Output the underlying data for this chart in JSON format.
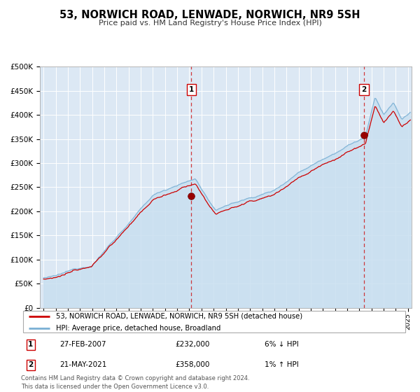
{
  "title": "53, NORWICH ROAD, LENWADE, NORWICH, NR9 5SH",
  "subtitle": "Price paid vs. HM Land Registry's House Price Index (HPI)",
  "legend_line1": "53, NORWICH ROAD, LENWADE, NORWICH, NR9 5SH (detached house)",
  "legend_line2": "HPI: Average price, detached house, Broadland",
  "annotation1_date": "27-FEB-2007",
  "annotation1_price": "£232,000",
  "annotation1_hpi": "6% ↓ HPI",
  "annotation2_date": "21-MAY-2021",
  "annotation2_price": "£358,000",
  "annotation2_hpi": "1% ↑ HPI",
  "footer1": "Contains HM Land Registry data © Crown copyright and database right 2024.",
  "footer2": "This data is licensed under the Open Government Licence v3.0.",
  "price_color": "#cc0000",
  "hpi_color": "#7ab0d4",
  "hpi_fill_color": "#c8dff0",
  "background_color": "#dce8f4",
  "vline_color": "#cc0000",
  "point1_x": 2007.16,
  "point1_y": 232000,
  "point2_x": 2021.38,
  "point2_y": 358000,
  "ylim": [
    0,
    500000
  ],
  "yticks": [
    0,
    50000,
    100000,
    150000,
    200000,
    250000,
    300000,
    350000,
    400000,
    450000,
    500000
  ],
  "xlim_start": 1994.7,
  "xlim_end": 2025.3
}
